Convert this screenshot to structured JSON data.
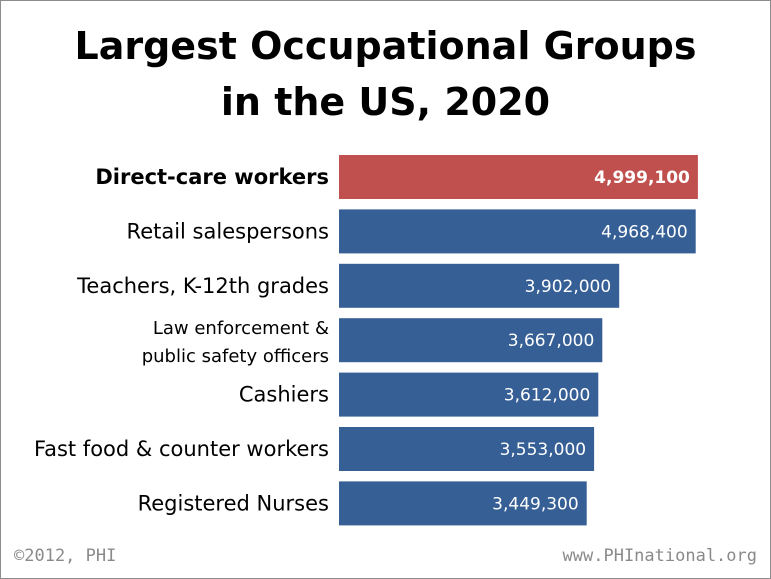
{
  "chart_data": {
    "type": "bar",
    "orientation": "horizontal",
    "title_lines": [
      "Largest Occupational Groups",
      "in the US, 2020"
    ],
    "categories": [
      "Direct-care workers",
      "Retail salespersons",
      "Teachers, K-12th grades",
      "Law enforcement & public safety officers",
      "Cashiers",
      "Fast food & counter workers",
      "Registered Nurses"
    ],
    "category_lines": [
      [
        "Direct-care workers"
      ],
      [
        "Retail salespersons"
      ],
      [
        "Teachers, K-12th grades"
      ],
      [
        "Law enforcement &",
        "public safety officers"
      ],
      [
        "Cashiers"
      ],
      [
        "Fast food & counter workers"
      ],
      [
        "Registered Nurses"
      ]
    ],
    "values": [
      4999100,
      4968400,
      3902000,
      3667000,
      3612000,
      3553000,
      3449300
    ],
    "value_labels": [
      "4,999,100",
      "4,968,400",
      "3,902,000",
      "3,667,000",
      "3,612,000",
      "3,553,000",
      "3,449,300"
    ],
    "highlight_index": 0,
    "colors": {
      "highlight": "#c0504d",
      "bar": "#365f96",
      "bar_label": "#ffffff",
      "category_text": "#000000"
    },
    "xlim": [
      0,
      5000000
    ],
    "grid": false,
    "legend": "none"
  },
  "footer": {
    "copyright": "©2012, PHI",
    "website": "www.PHInational.org"
  }
}
